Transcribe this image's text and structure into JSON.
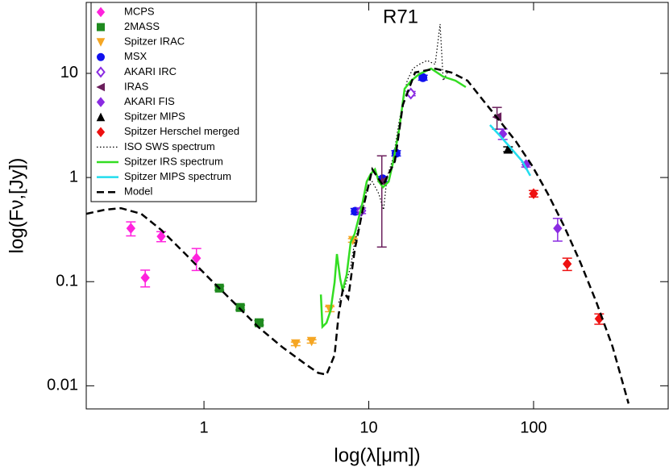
{
  "chart_data": {
    "type": "scatter",
    "title": "R71",
    "x_label": "log(λ[μm])",
    "y_label": "log(Fν,[Jy])",
    "xscale": "log",
    "yscale": "log",
    "xlim": [
      0.193,
      656
    ],
    "ylim": [
      0.006,
      48
    ],
    "xticks": [
      1,
      10,
      100
    ],
    "yticks": [
      0.01,
      0.1,
      1,
      10
    ],
    "legend": "upper left",
    "series": [
      {
        "name": "MCPS",
        "color": "#ff22dd",
        "marker": "diamond",
        "x": [
          0.36,
          0.44,
          0.55,
          0.9
        ],
        "values": [
          0.325,
          0.109,
          0.272,
          0.168
        ],
        "errors": [
          0.05,
          0.02,
          0.03,
          0.04
        ]
      },
      {
        "name": "2MASS",
        "color": "#1f8a1f",
        "marker": "square",
        "x": [
          1.24,
          1.66,
          2.16
        ],
        "values": [
          0.0867,
          0.0565,
          0.0403
        ],
        "errors": [
          0.004,
          0.003,
          0.002
        ]
      },
      {
        "name": "Spitzer IRAC",
        "color": "#f5a623",
        "marker": "triangle-down",
        "x": [
          3.6,
          4.5,
          5.8,
          8.0
        ],
        "values": [
          0.0253,
          0.0267,
          0.0545,
          0.249
        ],
        "errors": [
          0.001,
          0.001,
          0.003,
          0.01
        ]
      },
      {
        "name": "MSX",
        "color": "#1010ee",
        "marker": "circle",
        "x": [
          8.28,
          12.13,
          14.65,
          21.3
        ],
        "values": [
          0.474,
          0.97,
          1.71,
          9.1
        ],
        "errors": [
          0.03,
          0.05,
          0.1,
          0.5
        ]
      },
      {
        "name": "AKARI IRC",
        "color": "#8a2be2",
        "marker": "open-diamond",
        "x": [
          9,
          18
        ],
        "values": [
          0.48,
          6.4
        ],
        "errors": [
          0.03,
          0.3
        ]
      },
      {
        "name": "IRAS",
        "color": "#6b1f5c",
        "marker": "triangle-left",
        "x": [
          12,
          60
        ],
        "values": [
          0.915,
          3.81
        ],
        "errors": [
          0.7,
          0.9
        ]
      },
      {
        "name": "AKARI FIS",
        "color": "#8a2be2",
        "marker": "diamond",
        "x": [
          65,
          90,
          140
        ],
        "values": [
          2.62,
          1.33,
          0.325
        ],
        "errors": [
          0.3,
          0.07,
          0.08
        ]
      },
      {
        "name": "Spitzer MIPS",
        "color": "#000000",
        "marker": "triangle-up",
        "x": [
          70
        ],
        "values": [
          1.87
        ],
        "errors": [
          0.1
        ]
      },
      {
        "name": "Spitzer Herschel merged",
        "color": "#ee1111",
        "marker": "diamond",
        "x": [
          100,
          160,
          250
        ],
        "values": [
          0.7,
          0.148,
          0.044
        ],
        "errors": [
          0.05,
          0.02,
          0.005
        ]
      },
      {
        "name": "ISO SWS spectrum",
        "color": "#000000",
        "line": "dotted",
        "x": [
          6.56,
          7.17,
          7.77,
          8.21,
          8.99,
          9.72,
          10.5,
          11.5,
          12.3,
          12.9,
          14.1,
          15.3,
          17.1,
          18.5,
          20.2,
          22.6,
          25.3,
          27.1,
          28.3,
          30.0
        ],
        "values": [
          0.0629,
          0.0898,
          0.14,
          0.24,
          0.41,
          0.765,
          0.915,
          0.7,
          0.49,
          1.0,
          1.56,
          3.49,
          8.51,
          11.1,
          12.2,
          13.3,
          12.2,
          29.7,
          8.51,
          10.2
        ]
      },
      {
        "name": "Spitzer IRS spectrum",
        "color": "#33dd22",
        "line": "solid",
        "x": [
          5.12,
          5.23,
          5.54,
          5.86,
          6.2,
          6.41,
          6.7,
          6.94,
          7.34,
          7.77,
          8.21,
          8.69,
          9.19,
          9.72,
          10.3,
          10.9,
          11.5,
          12.2,
          13.2,
          14.1,
          15.3,
          16.5,
          18.1,
          20.2,
          23.9,
          28.3,
          33.6,
          38.8
        ],
        "values": [
          0.0752,
          0.0368,
          0.0403,
          0.0526,
          0.0982,
          0.184,
          0.107,
          0.0822,
          0.117,
          0.24,
          0.287,
          0.41,
          0.585,
          0.915,
          1.09,
          1.2,
          0.915,
          0.807,
          0.915,
          1.43,
          2.92,
          7.12,
          8.51,
          9.82,
          11.1,
          9.31,
          8.51,
          7.38
        ]
      },
      {
        "name": "Spitzer MIPS spectrum",
        "color": "#22ddee",
        "line": "solid",
        "x": [
          54.4,
          62.3,
          73.8,
          85.4,
          95.5
        ],
        "values": [
          3.19,
          2.53,
          1.87,
          1.43,
          1.04
        ]
      },
      {
        "name": "Model",
        "color": "#000000",
        "line": "dashed",
        "x": [
          0.193,
          0.25,
          0.313,
          0.416,
          0.551,
          0.772,
          1.08,
          1.52,
          2.13,
          2.98,
          4.18,
          4.94,
          5.54,
          6.2,
          6.56,
          6.94,
          7.5,
          8.21,
          9.19,
          10.5,
          12.2,
          14.4,
          16.1,
          19.1,
          25.3,
          31.7,
          39.7,
          49.7,
          62.3,
          78.0,
          97.7,
          122,
          153,
          192,
          241,
          302,
          377
        ],
        "values": [
          0.448,
          0.49,
          0.508,
          0.448,
          0.313,
          0.184,
          0.107,
          0.0629,
          0.0368,
          0.0236,
          0.0159,
          0.0133,
          0.0128,
          0.0197,
          0.0481,
          0.0822,
          0.0688,
          0.2,
          0.49,
          1.2,
          0.836,
          1.43,
          4.99,
          10.2,
          11.1,
          10.2,
          8.51,
          5.45,
          3.49,
          2.23,
          1.31,
          0.7,
          0.343,
          0.154,
          0.0629,
          0.0236,
          0.00675
        ]
      }
    ]
  }
}
